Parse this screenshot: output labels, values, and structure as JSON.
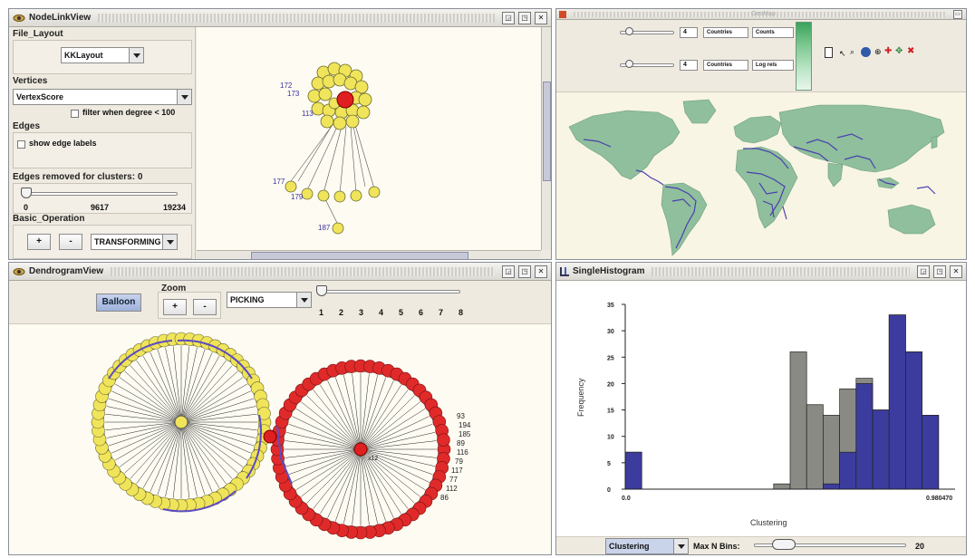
{
  "node_link_view": {
    "title": "NodeLinkView",
    "file_layout": {
      "label": "File_Layout",
      "layout_value": "KKLayout"
    },
    "vertices": {
      "label": "Vertices",
      "score_value": "VertexScore",
      "filter_label": "filter when degree < 100"
    },
    "edges": {
      "label": "Edges",
      "show_labels": "show edge labels"
    },
    "clusters": {
      "label": "Edges removed for clusters: 0",
      "ticks": [
        "0",
        "9617",
        "19234"
      ]
    },
    "basic_operation": {
      "label": "Basic_Operation",
      "plus": "+",
      "minus": "-",
      "mode_value": "TRANSFORMING"
    },
    "node_labels": [
      "172",
      "173",
      "113",
      "177",
      "179",
      "187"
    ]
  },
  "geo_view": {
    "title": "GeoMap",
    "row1": {
      "value": "4",
      "combo_a": "Countries",
      "combo_b": "Counts"
    },
    "row2": {
      "value": "4",
      "combo_a": "Countries",
      "combo_b": "Log rels"
    },
    "colors": {
      "land": "#8fbf9c",
      "highlight_border": "#4a3fb0",
      "ocean": "#f8f5e4"
    }
  },
  "dendrogram_view": {
    "title": "DendrogramView",
    "balloon_label": "Balloon",
    "zoom_label": "Zoom",
    "zoom_plus": "+",
    "zoom_minus": "-",
    "mode_value": "PICKING",
    "slider_ticks": [
      "1",
      "2",
      "3",
      "4",
      "5",
      "6",
      "7",
      "8"
    ],
    "right_labels": [
      "93",
      "194",
      "185",
      "89",
      "116",
      "79",
      "117",
      "77",
      "112",
      "86"
    ],
    "center_label": "x12"
  },
  "single_histogram": {
    "title": "SingleHistogram",
    "attribute_value": "Clustering",
    "max_bins_label": "Max N Bins:",
    "max_bins_value": "20",
    "chart_data": {
      "type": "bar",
      "xlabel": "Clustering",
      "ylabel": "Frequency",
      "x_min_label": "0.0",
      "x_max_label": "0.980470",
      "ylim": [
        0,
        35
      ],
      "yticks": [
        "35",
        "30",
        "25",
        "20",
        "15",
        "10",
        "5",
        "0"
      ],
      "bins": 20,
      "series": [
        {
          "name": "gray",
          "color": "#8a8a84",
          "values": [
            7,
            0,
            0,
            0,
            0,
            0,
            0,
            0,
            0,
            1,
            26,
            16,
            14,
            19,
            21,
            15,
            33,
            26,
            14,
            0
          ]
        },
        {
          "name": "blue",
          "color": "#3c3c9e",
          "values": [
            7,
            0,
            0,
            0,
            0,
            0,
            0,
            0,
            0,
            0,
            0,
            0,
            1,
            7,
            20,
            15,
            33,
            26,
            14,
            0
          ]
        }
      ]
    }
  }
}
